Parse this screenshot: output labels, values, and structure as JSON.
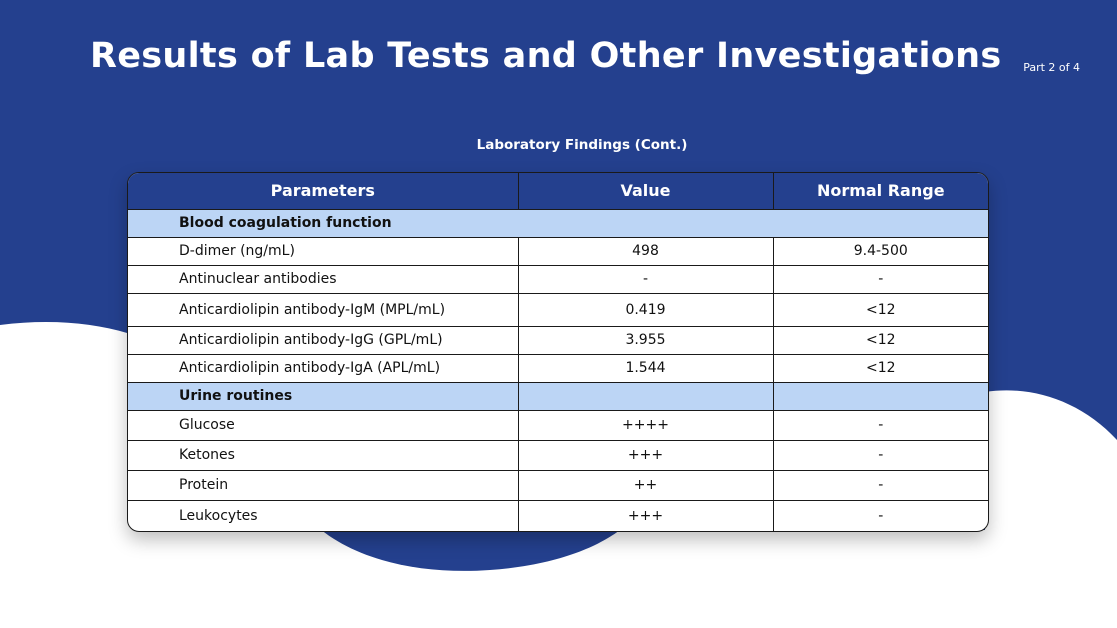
{
  "slide": {
    "title": "Results of Lab Tests and Other Investigations",
    "part": "Part 2 of 4",
    "subtitle": "Laboratory Findings (Cont.)"
  },
  "table": {
    "headers": [
      "Parameters",
      "Value",
      "Normal Range"
    ],
    "sections": [
      {
        "label": "Blood coagulation function",
        "rows": [
          {
            "parameter": "D-dimer (ng/mL)",
            "value": "498",
            "range": "9.4-500"
          },
          {
            "parameter": "Antinuclear antibodies",
            "value": "-",
            "range": "-"
          },
          {
            "parameter": "Anticardiolipin antibody-IgM (MPL/mL)",
            "value": "0.419",
            "range": "<12"
          },
          {
            "parameter": "Anticardiolipin antibody-IgG (GPL/mL)",
            "value": "3.955",
            "range": "<12"
          },
          {
            "parameter": "Anticardiolipin antibody-IgA (APL/mL)",
            "value": "1.544",
            "range": "<12"
          }
        ]
      },
      {
        "label": "Urine routines",
        "rows": [
          {
            "parameter": "Glucose",
            "value": "++++",
            "range": "-"
          },
          {
            "parameter": "Ketones",
            "value": "+++",
            "range": "-"
          },
          {
            "parameter": "Protein",
            "value": "++",
            "range": "-"
          },
          {
            "parameter": "Leukocytes",
            "value": "+++",
            "range": "-"
          }
        ]
      }
    ]
  },
  "colors": {
    "primary_blue": "#24408e",
    "section_fill": "#bcd5f5",
    "text_dark": "#111111"
  }
}
